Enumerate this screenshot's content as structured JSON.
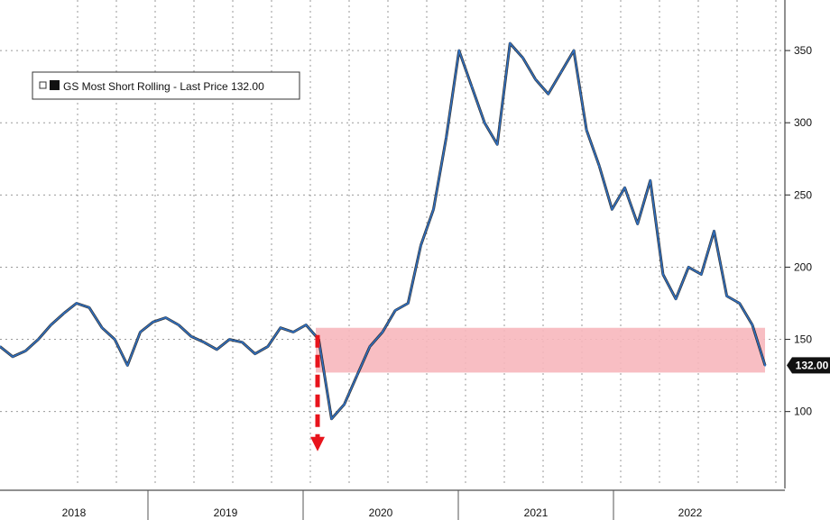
{
  "chart_data": {
    "type": "line",
    "title": "",
    "xlabel": "",
    "ylabel": "",
    "legend": {
      "label": "GS Most Short Rolling - Last Price 132.00",
      "position": "top-left"
    },
    "x_categories": [
      "2018",
      "2019",
      "2020",
      "2021",
      "2022"
    ],
    "y_ticks": [
      100,
      150,
      200,
      250,
      300,
      350
    ],
    "ylim": [
      48,
      385
    ],
    "grid": true,
    "last_value": 132.0,
    "last_value_label": "132.00",
    "highlight_band": {
      "ymin": 127,
      "ymax": 158,
      "color": "#f7b7bd"
    },
    "arrow_annotation": {
      "color": "#e8141c",
      "from_value": 158,
      "to_value": 80
    },
    "series": [
      {
        "name": "GS Most Short Rolling",
        "color": "#2f6fc0",
        "x": [
          "2017-11",
          "2017-12",
          "2018-01",
          "2018-02",
          "2018-03",
          "2018-04",
          "2018-05",
          "2018-06",
          "2018-07",
          "2018-08",
          "2018-09",
          "2018-10",
          "2018-11",
          "2018-12",
          "2019-01",
          "2019-02",
          "2019-03",
          "2019-04",
          "2019-05",
          "2019-06",
          "2019-07",
          "2019-08",
          "2019-09",
          "2019-10",
          "2019-11",
          "2019-12",
          "2020-01",
          "2020-02",
          "2020-03",
          "2020-04",
          "2020-05",
          "2020-06",
          "2020-07",
          "2020-08",
          "2020-09",
          "2020-10",
          "2020-11",
          "2020-12",
          "2021-01",
          "2021-02",
          "2021-03",
          "2021-04",
          "2021-05",
          "2021-06",
          "2021-07",
          "2021-08",
          "2021-09",
          "2021-10",
          "2021-11",
          "2021-12",
          "2022-01",
          "2022-02",
          "2022-03",
          "2022-04",
          "2022-05",
          "2022-06",
          "2022-07",
          "2022-08",
          "2022-09",
          "2022-10",
          "2022-11"
        ],
        "values": [
          145,
          138,
          142,
          150,
          160,
          168,
          175,
          172,
          158,
          150,
          132,
          155,
          162,
          165,
          160,
          152,
          148,
          143,
          150,
          148,
          140,
          145,
          158,
          155,
          160,
          150,
          95,
          105,
          125,
          145,
          155,
          170,
          175,
          215,
          240,
          290,
          350,
          325,
          300,
          285,
          355,
          345,
          330,
          320,
          335,
          350,
          295,
          270,
          240,
          255,
          230,
          260,
          195,
          178,
          200,
          195,
          225,
          180,
          175,
          160,
          132
        ]
      }
    ]
  }
}
